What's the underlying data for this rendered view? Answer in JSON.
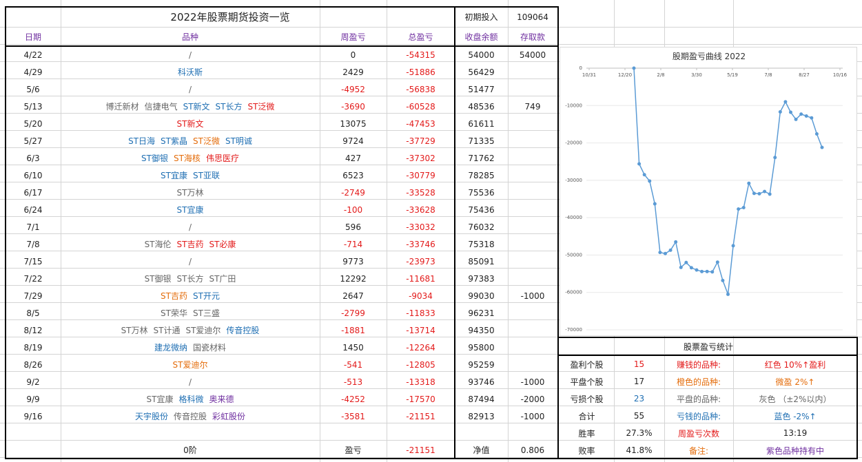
{
  "title": "2022年股票期货投资一览",
  "initial_investment_label": "初期投入",
  "initial_investment_value": "109064",
  "headers": {
    "date": "日期",
    "variety": "品种",
    "weekly": "周盈亏",
    "total": "总盈亏",
    "balance": "收盘余额",
    "deposit": "存取款"
  },
  "rows": [
    {
      "date": "4/22",
      "stocks": [
        {
          "name": "/",
          "color": "gray"
        }
      ],
      "weekly": "0",
      "weekly_color": "black",
      "total": "-54315",
      "balance": "54000",
      "deposit": "54000"
    },
    {
      "date": "4/29",
      "stocks": [
        {
          "name": "科沃斯",
          "color": "blue"
        }
      ],
      "weekly": "2429",
      "weekly_color": "black",
      "total": "-51886",
      "balance": "56429",
      "deposit": ""
    },
    {
      "date": "5/6",
      "stocks": [
        {
          "name": "/",
          "color": "gray"
        }
      ],
      "weekly": "-4952",
      "weekly_color": "red",
      "total": "-56838",
      "balance": "51477",
      "deposit": ""
    },
    {
      "date": "5/13",
      "stocks": [
        {
          "name": "博迁新材",
          "color": "gray"
        },
        {
          "name": "信捷电气",
          "color": "gray"
        },
        {
          "name": "ST新文",
          "color": "blue"
        },
        {
          "name": "ST长方",
          "color": "blue"
        },
        {
          "name": "ST泛微",
          "color": "red"
        }
      ],
      "weekly": "-3690",
      "weekly_color": "red",
      "total": "-60528",
      "balance": "48536",
      "deposit": "749"
    },
    {
      "date": "5/20",
      "stocks": [
        {
          "name": "ST新文",
          "color": "red"
        }
      ],
      "weekly": "13075",
      "weekly_color": "black",
      "total": "-47453",
      "balance": "61611",
      "deposit": ""
    },
    {
      "date": "5/27",
      "stocks": [
        {
          "name": "ST日海",
          "color": "blue"
        },
        {
          "name": "ST紫晶",
          "color": "blue"
        },
        {
          "name": "ST泛微",
          "color": "orange"
        },
        {
          "name": "ST明诚",
          "color": "blue"
        }
      ],
      "weekly": "9724",
      "weekly_color": "black",
      "total": "-37729",
      "balance": "71335",
      "deposit": ""
    },
    {
      "date": "6/3",
      "stocks": [
        {
          "name": "ST御银",
          "color": "blue"
        },
        {
          "name": "ST海核",
          "color": "orange"
        },
        {
          "name": "伟思医疗",
          "color": "red"
        }
      ],
      "weekly": "427",
      "weekly_color": "black",
      "total": "-37302",
      "balance": "71762",
      "deposit": ""
    },
    {
      "date": "6/10",
      "stocks": [
        {
          "name": "ST宜康",
          "color": "blue"
        },
        {
          "name": "ST亚联",
          "color": "blue"
        }
      ],
      "weekly": "6523",
      "weekly_color": "black",
      "total": "-30779",
      "balance": "78285",
      "deposit": ""
    },
    {
      "date": "6/17",
      "stocks": [
        {
          "name": "ST万林",
          "color": "gray"
        }
      ],
      "weekly": "-2749",
      "weekly_color": "red",
      "total": "-33528",
      "balance": "75536",
      "deposit": ""
    },
    {
      "date": "6/24",
      "stocks": [
        {
          "name": "ST宜康",
          "color": "blue"
        }
      ],
      "weekly": "-100",
      "weekly_color": "red",
      "total": "-33628",
      "balance": "75436",
      "deposit": ""
    },
    {
      "date": "7/1",
      "stocks": [
        {
          "name": "/",
          "color": "gray"
        }
      ],
      "weekly": "596",
      "weekly_color": "black",
      "total": "-33032",
      "balance": "76032",
      "deposit": ""
    },
    {
      "date": "7/8",
      "stocks": [
        {
          "name": "ST海伦",
          "color": "gray"
        },
        {
          "name": "ST吉药",
          "color": "red"
        },
        {
          "name": "ST必康",
          "color": "red"
        }
      ],
      "weekly": "-714",
      "weekly_color": "red",
      "total": "-33746",
      "balance": "75318",
      "deposit": ""
    },
    {
      "date": "7/15",
      "stocks": [
        {
          "name": "/",
          "color": "gray"
        }
      ],
      "weekly": "9773",
      "weekly_color": "black",
      "total": "-23973",
      "balance": "85091",
      "deposit": ""
    },
    {
      "date": "7/22",
      "stocks": [
        {
          "name": "ST御银",
          "color": "gray"
        },
        {
          "name": "ST长方",
          "color": "gray"
        },
        {
          "name": "ST广田",
          "color": "gray"
        }
      ],
      "weekly": "12292",
      "weekly_color": "black",
      "total": "-11681",
      "balance": "97383",
      "deposit": ""
    },
    {
      "date": "7/29",
      "stocks": [
        {
          "name": "ST吉药",
          "color": "orange"
        },
        {
          "name": "ST开元",
          "color": "blue"
        }
      ],
      "weekly": "2647",
      "weekly_color": "black",
      "total": "-9034",
      "balance": "99030",
      "deposit": "-1000"
    },
    {
      "date": "8/5",
      "stocks": [
        {
          "name": "ST荣华",
          "color": "gray"
        },
        {
          "name": "ST三盛",
          "color": "gray"
        }
      ],
      "weekly": "-2799",
      "weekly_color": "red",
      "total": "-11833",
      "balance": "96231",
      "deposit": ""
    },
    {
      "date": "8/12",
      "stocks": [
        {
          "name": "ST万林",
          "color": "gray"
        },
        {
          "name": "ST计通",
          "color": "gray"
        },
        {
          "name": "ST爱迪尔",
          "color": "gray"
        },
        {
          "name": "传音控股",
          "color": "blue"
        }
      ],
      "weekly": "-1881",
      "weekly_color": "red",
      "total": "-13714",
      "balance": "94350",
      "deposit": ""
    },
    {
      "date": "8/19",
      "stocks": [
        {
          "name": "建龙微纳",
          "color": "blue"
        },
        {
          "name": "国瓷材料",
          "color": "gray"
        }
      ],
      "weekly": "1450",
      "weekly_color": "black",
      "total": "-12264",
      "balance": "95800",
      "deposit": ""
    },
    {
      "date": "8/26",
      "stocks": [
        {
          "name": "ST爱迪尔",
          "color": "orange"
        }
      ],
      "weekly": "-541",
      "weekly_color": "red",
      "total": "-12805",
      "balance": "95259",
      "deposit": ""
    },
    {
      "date": "9/2",
      "stocks": [
        {
          "name": "/",
          "color": "gray"
        }
      ],
      "weekly": "-513",
      "weekly_color": "red",
      "total": "-13318",
      "balance": "93746",
      "deposit": "-1000"
    },
    {
      "date": "9/9",
      "stocks": [
        {
          "name": "ST宜康",
          "color": "gray"
        },
        {
          "name": "格科微",
          "color": "blue"
        },
        {
          "name": "奥来德",
          "color": "purple"
        }
      ],
      "weekly": "-4252",
      "weekly_color": "red",
      "total": "-17570",
      "balance": "87494",
      "deposit": "-2000"
    },
    {
      "date": "9/16",
      "stocks": [
        {
          "name": "天宇股份",
          "color": "blue"
        },
        {
          "name": "传音控股",
          "color": "gray"
        },
        {
          "name": "彩虹股份",
          "color": "purple"
        }
      ],
      "weekly": "-3581",
      "weekly_color": "red",
      "total": "-21151",
      "balance": "82913",
      "deposit": "-1000"
    }
  ],
  "footer": {
    "variety": "0阶",
    "weekly_label": "盈亏",
    "total": "-21151",
    "balance_label": "净值",
    "deposit": "0.806"
  },
  "chart_data": {
    "type": "line",
    "title": "股期盈亏曲线 2022",
    "x_ticks": [
      "10/31",
      "12/20",
      "2/8",
      "3/30",
      "5/19",
      "7/8",
      "8/27",
      "10/16"
    ],
    "y_ticks": [
      "0",
      "-10000",
      "-20000",
      "-30000",
      "-40000",
      "-50000",
      "-60000",
      "-70000"
    ],
    "ylim": [
      -70000,
      0
    ],
    "grid": true,
    "color": "#5b9bd5",
    "series": [
      {
        "values": [
          0,
          -25600,
          -28500,
          -30200,
          -36300,
          -49300,
          -49600,
          -48700,
          -46500,
          -53300,
          -52000,
          -53400,
          -54000,
          -54400,
          -54400,
          -54500,
          -51900,
          -56800,
          -60500,
          -47500,
          -37700,
          -37300,
          -30800,
          -33500,
          -33600,
          -33000,
          -33700,
          -23900,
          -11700,
          -9000,
          -11800,
          -13700,
          -12300,
          -12800,
          -13300,
          -17600,
          -21200
        ]
      }
    ]
  },
  "stats": {
    "title": "股票盈亏统计",
    "rows": [
      {
        "label": "盈利个股",
        "value": "15",
        "value_color": "red",
        "desc_label": "赚钱的品种:",
        "desc_color": "red",
        "desc": "红色 10%↑盈利"
      },
      {
        "label": "平盘个股",
        "value": "17",
        "value_color": "black",
        "desc_label": "橙色的品种:",
        "desc_color": "orange",
        "desc": "微盈 2%↑"
      },
      {
        "label": "亏损个股",
        "value": "23",
        "value_color": "blue",
        "desc_label": "平盘的品种:",
        "desc_color": "gray",
        "desc": "灰色 （±2%以内）"
      },
      {
        "label": "合计",
        "value": "55",
        "value_color": "black",
        "desc_label": "亏钱的品种:",
        "desc_color": "blue",
        "desc": "蓝色 -2%↑"
      }
    ],
    "win_label": "胜率",
    "win_value": "27.3%",
    "week_label": "周盈亏次数",
    "week_value": "13:19",
    "loss_label": "败率",
    "loss_value": "41.8%",
    "note_label": "备注:",
    "note_value": "紫色品种持有中"
  },
  "colors": {
    "red": "#e31a1a",
    "orange": "#e46c0a",
    "blue": "#1f6fb3",
    "gray": "#666666",
    "purple": "#7030a0",
    "header": "#7030a0",
    "line": "#5b9bd5"
  }
}
